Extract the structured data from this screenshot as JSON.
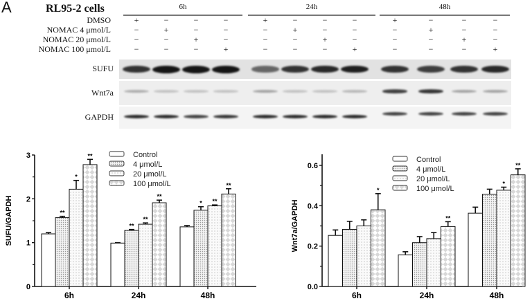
{
  "figure": {
    "panel_letter": "A",
    "cell_line": "RL95-2 cells",
    "timepoints": [
      "6h",
      "24h",
      "48h"
    ],
    "treatment_rows": [
      {
        "label": "DMSO",
        "signs": [
          "+",
          "−",
          "−",
          "−",
          "+",
          "−",
          "−",
          "−",
          "+",
          "−",
          "−",
          "−"
        ]
      },
      {
        "label": "NOMAC 4 μmol/L",
        "signs": [
          "−",
          "+",
          "−",
          "−",
          "−",
          "+",
          "−",
          "−",
          "−",
          "+",
          "−",
          "−"
        ]
      },
      {
        "label": "NOMAC 20 μmol/L",
        "signs": [
          "−",
          "−",
          "+",
          "−",
          "−",
          "−",
          "+",
          "−",
          "−",
          "−",
          "+",
          "−"
        ]
      },
      {
        "label": "NOMAC 100 μmol/L",
        "signs": [
          "−",
          "−",
          "−",
          "+",
          "−",
          "−",
          "−",
          "+",
          "−",
          "−",
          "−",
          "+"
        ]
      }
    ],
    "blots": [
      {
        "label": "SUFU",
        "intensity": [
          0.85,
          1.0,
          1.0,
          1.0,
          0.6,
          0.85,
          0.9,
          0.95,
          0.85,
          0.8,
          0.85,
          0.9
        ]
      },
      {
        "label": "Wnt7a",
        "intensity": [
          0.3,
          0.2,
          0.2,
          0.15,
          0.35,
          0.2,
          0.2,
          0.25,
          0.8,
          0.85,
          0.35,
          0.35
        ]
      },
      {
        "label": "GAPDH",
        "intensity": [
          0.9,
          0.9,
          0.8,
          0.85,
          0.9,
          0.9,
          0.9,
          0.9,
          0.8,
          0.8,
          0.8,
          0.8
        ]
      }
    ]
  },
  "chart_data": [
    {
      "type": "bar",
      "title": "",
      "xlabel": "",
      "ylabel": "SUFU/GAPDH",
      "ylim": [
        0,
        3
      ],
      "yticks": [
        0,
        1,
        2,
        3
      ],
      "categories": [
        "6h",
        "24h",
        "48h"
      ],
      "legend_position": "top-center",
      "series": [
        {
          "name": "Control",
          "values": [
            1.2,
            0.99,
            1.36
          ],
          "errors": [
            0.03,
            0.01,
            0.03
          ],
          "sig": [
            "",
            "",
            ""
          ]
        },
        {
          "name": "4 μmol/L",
          "values": [
            1.57,
            1.28,
            1.74
          ],
          "errors": [
            0.03,
            0.02,
            0.08
          ],
          "sig": [
            "**",
            "**",
            "*"
          ]
        },
        {
          "name": "20 μmol/L",
          "values": [
            2.22,
            1.42,
            1.84
          ],
          "errors": [
            0.2,
            0.03,
            0.02
          ],
          "sig": [
            "*",
            "**",
            "**"
          ]
        },
        {
          "name": "100 μmol/L",
          "values": [
            2.78,
            1.91,
            2.11
          ],
          "errors": [
            0.12,
            0.06,
            0.12
          ],
          "sig": [
            "**",
            "**",
            "**"
          ]
        }
      ]
    },
    {
      "type": "bar",
      "title": "",
      "xlabel": "",
      "ylabel": "Wnt7a/GAPDH",
      "ylim": [
        0,
        0.65
      ],
      "yticks": [
        "0.0",
        "0.2",
        "0.4",
        "0.6"
      ],
      "categories": [
        "6h",
        "24h",
        "48h"
      ],
      "legend_position": "top-center",
      "series": [
        {
          "name": "Control",
          "values": [
            0.253,
            0.157,
            0.363
          ],
          "errors": [
            0.027,
            0.015,
            0.03
          ],
          "sig": [
            "",
            "",
            ""
          ]
        },
        {
          "name": "4 μmol/L",
          "values": [
            0.283,
            0.217,
            0.457
          ],
          "errors": [
            0.04,
            0.03,
            0.025
          ],
          "sig": [
            "",
            "",
            ""
          ]
        },
        {
          "name": "20 μmol/L",
          "values": [
            0.3,
            0.237,
            0.477
          ],
          "errors": [
            0.03,
            0.03,
            0.015
          ],
          "sig": [
            "",
            "",
            "*"
          ]
        },
        {
          "name": "100 μmol/L",
          "values": [
            0.38,
            0.297,
            0.553
          ],
          "errors": [
            0.08,
            0.024,
            0.03
          ],
          "sig": [
            "*",
            "**",
            "**"
          ]
        }
      ]
    }
  ]
}
